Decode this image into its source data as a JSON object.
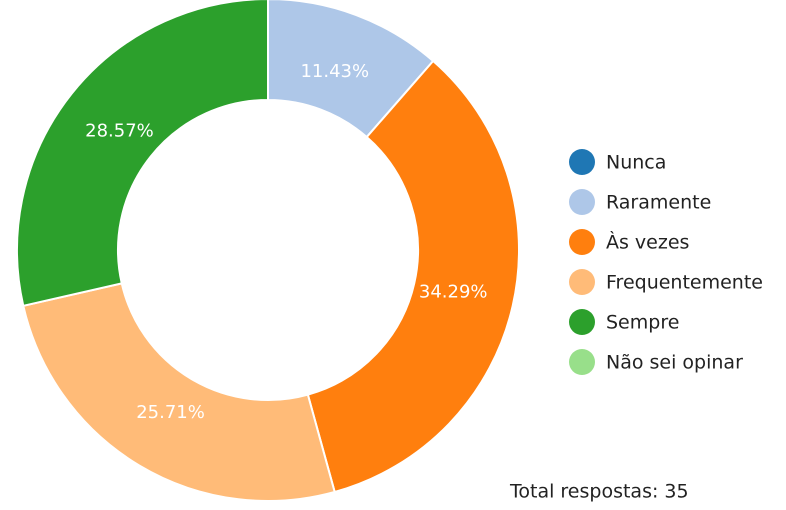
{
  "chart_data": {
    "type": "donut",
    "categories": [
      "Nunca",
      "Raramente",
      "Às vezes",
      "Frequentemente",
      "Sempre",
      "Não sei opinar"
    ],
    "values": [
      0,
      11.43,
      34.29,
      25.71,
      28.57,
      0
    ],
    "value_labels": [
      null,
      "11.43%",
      "34.29%",
      "25.71%",
      "28.57%",
      null
    ],
    "colors": [
      "#1f77b4",
      "#aec7e8",
      "#ff7f0e",
      "#ffbb78",
      "#2ca02c",
      "#98df8a"
    ],
    "annotation": "Total respostas: 35",
    "legend": "right"
  }
}
